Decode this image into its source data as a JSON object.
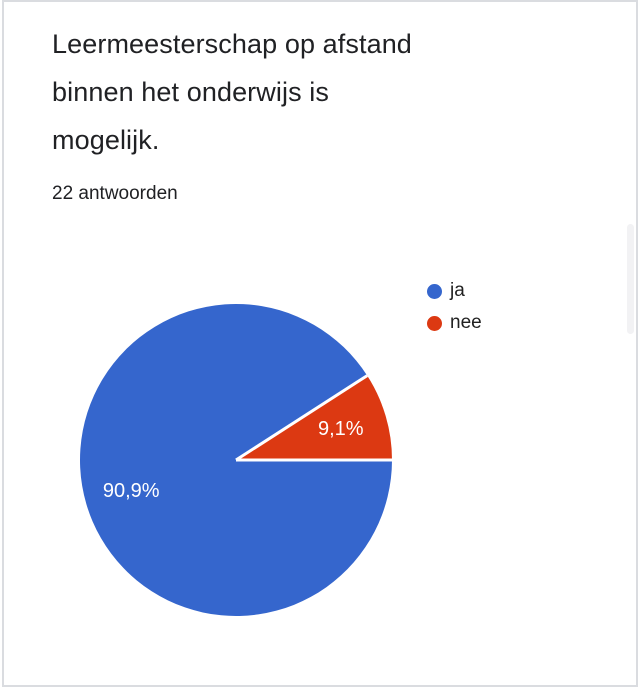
{
  "card": {
    "title_lines": [
      "Leermeesterschap op afstand",
      "binnen het onderwijs is",
      "mogelijk."
    ],
    "answer_count_label": "22 antwoorden"
  },
  "chart_data": {
    "type": "pie",
    "title": "Leermeesterschap op afstand binnen het onderwijs is mogelijk.",
    "subtitle": "22 antwoorden",
    "labels": [
      "ja",
      "nee"
    ],
    "values": [
      90.9,
      9.1
    ],
    "percent_labels": [
      "90,9%",
      "9,1%"
    ],
    "colors": [
      "#3566cd",
      "#dc3912"
    ],
    "legend_position": "right",
    "slice_label_color": "#ffffff",
    "separator_color": "#ffffff"
  }
}
